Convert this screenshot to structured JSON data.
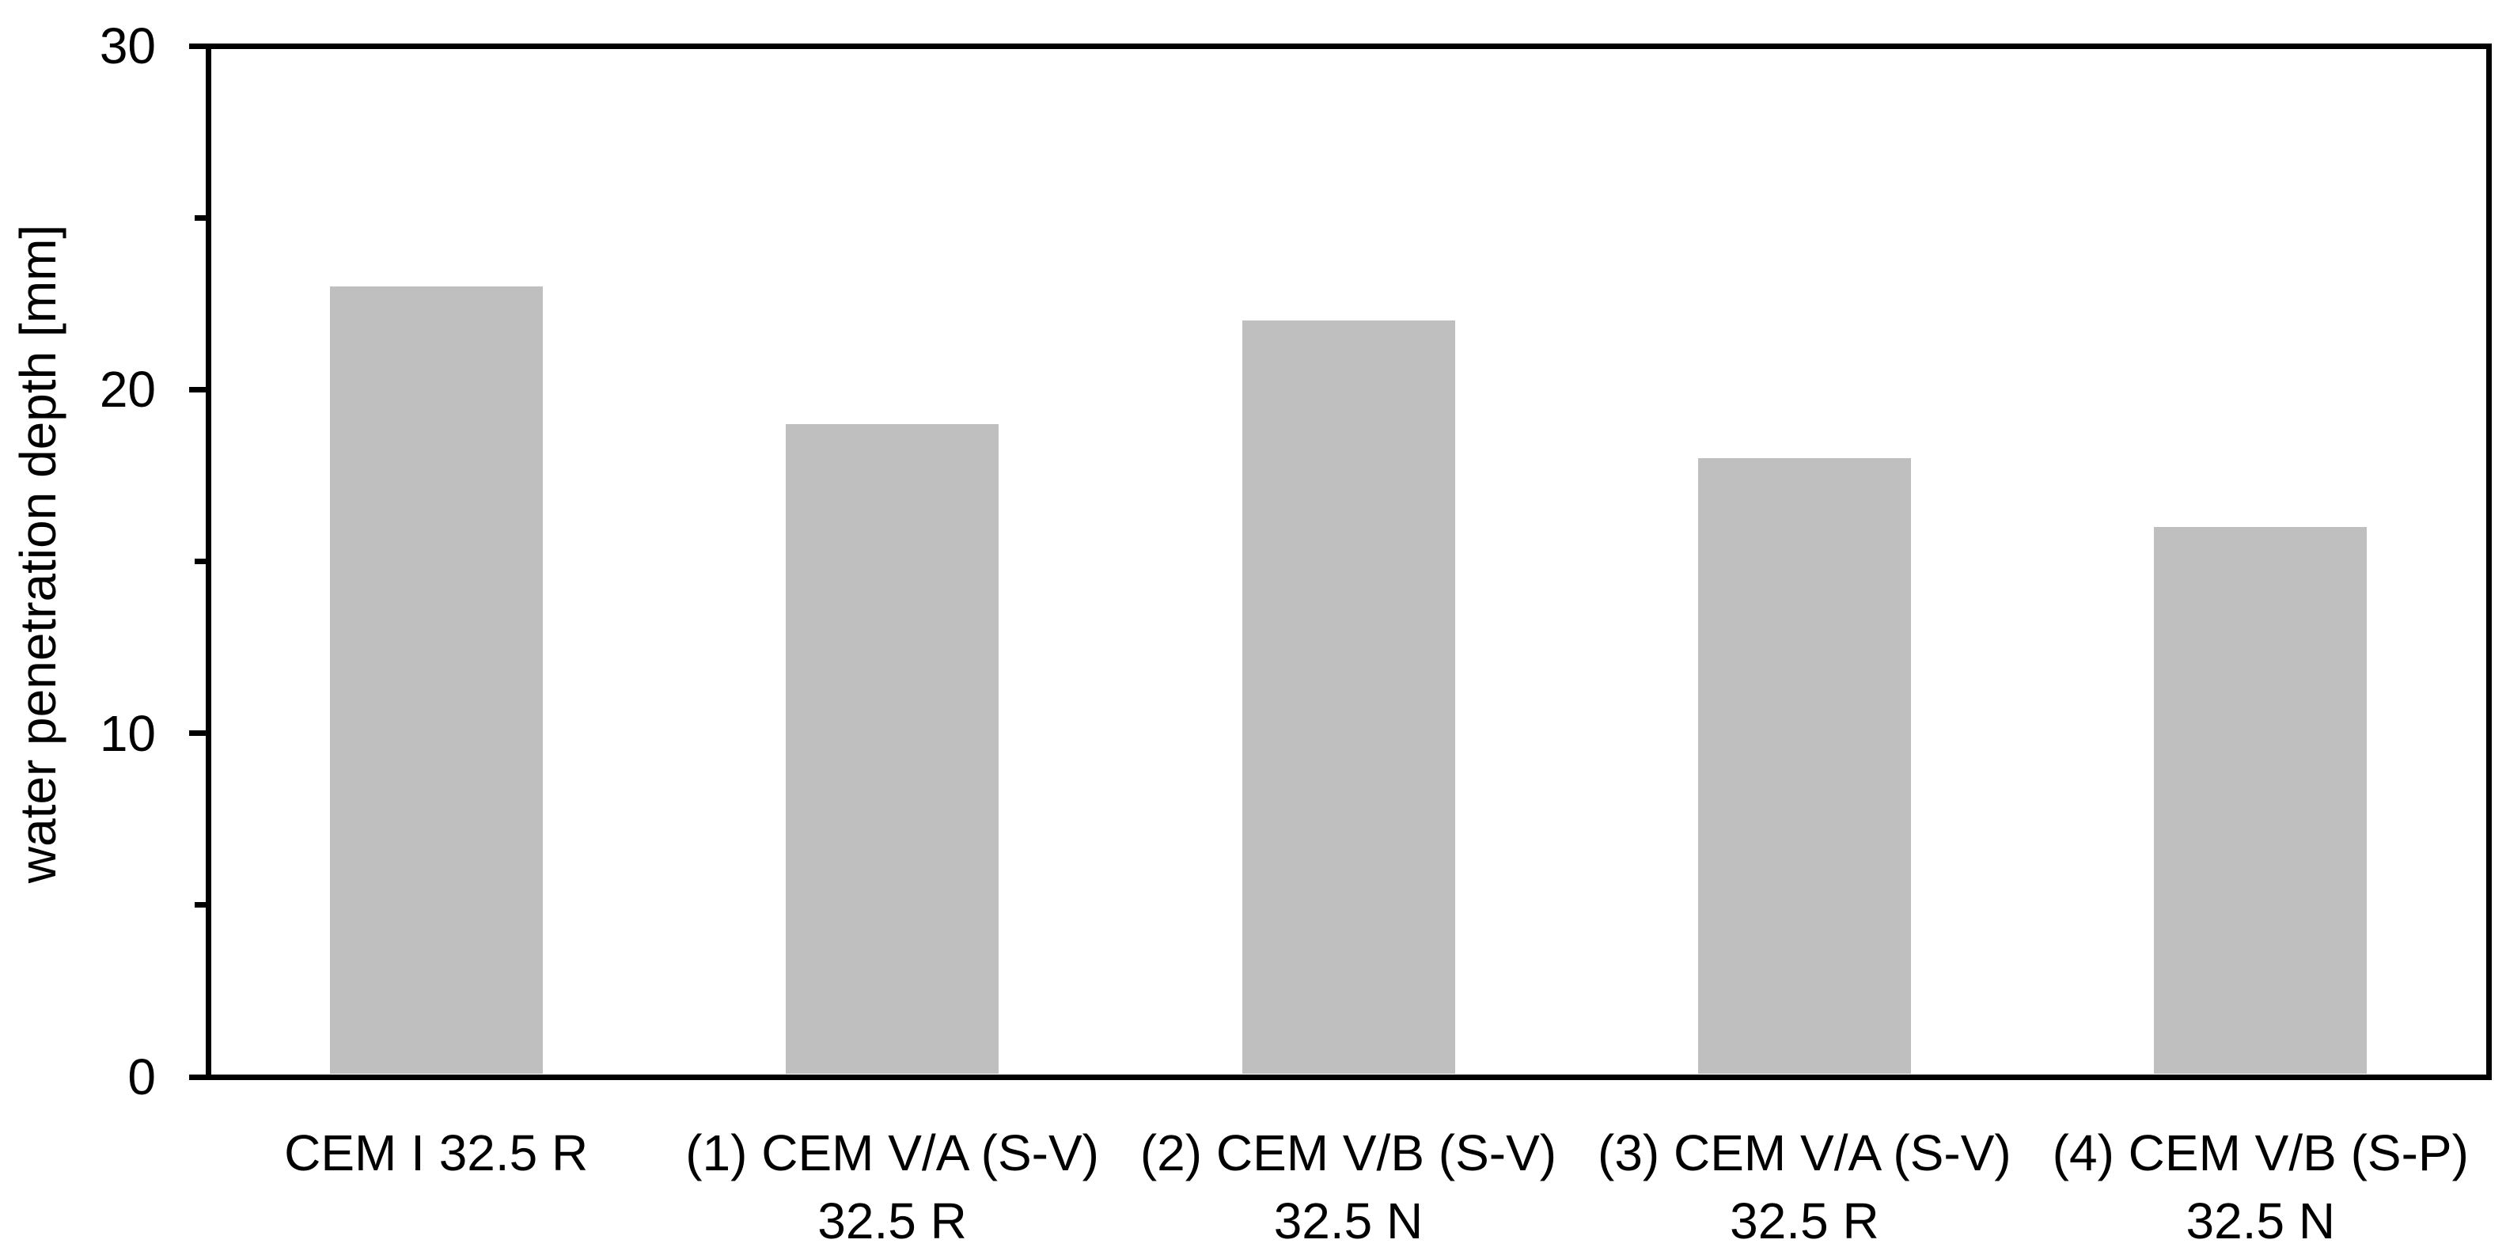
{
  "chart_data": {
    "type": "bar",
    "title": "",
    "ylabel": "water penetration depth [mm]",
    "xlabel": "",
    "unit": "mm",
    "ylim": [
      0,
      30
    ],
    "yticks_major": [
      0,
      10,
      20,
      30
    ],
    "yticks_minor": [
      5,
      15,
      25
    ],
    "categories": [
      {
        "line1": "CEM I 32.5 R",
        "line2": ""
      },
      {
        "line1": "(1) CEM V/A (S-V)",
        "line2": "32.5 R"
      },
      {
        "line1": "(2) CEM V/B (S-V)",
        "line2": "32.5 N"
      },
      {
        "line1": "(3) CEM V/A (S-V)",
        "line2": "32.5 R"
      },
      {
        "line1": "(4) CEM V/B (S-P)",
        "line2": "32.5 N"
      }
    ],
    "values": [
      23,
      19,
      22,
      18,
      16
    ],
    "bar_color": "#bfbfbf",
    "axis_color": "#000000",
    "background_color": "#ffffff",
    "grid": false,
    "legend": "none"
  }
}
